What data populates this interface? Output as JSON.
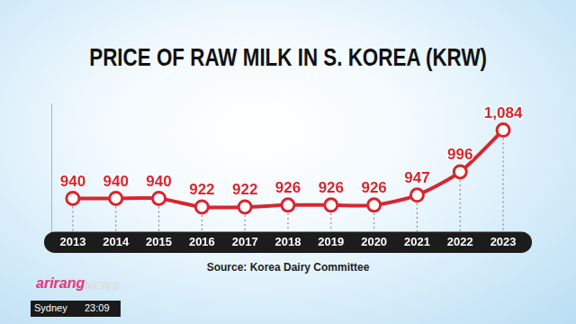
{
  "chart_data": {
    "type": "line",
    "title": "PRICE OF RAW MILK IN S. KOREA (KRW)",
    "categories": [
      "2013",
      "2014",
      "2015",
      "2016",
      "2017",
      "2018",
      "2019",
      "2020",
      "2021",
      "2022",
      "2023"
    ],
    "values": [
      940,
      940,
      940,
      922,
      922,
      926,
      926,
      926,
      947,
      996,
      1084
    ],
    "value_labels": [
      "940",
      "940",
      "940",
      "922",
      "922",
      "926",
      "926",
      "926",
      "947",
      "996",
      "1,084"
    ],
    "color": "#d7262e",
    "marker": "circle",
    "line_style": "solid",
    "ylim": [
      870,
      1140
    ],
    "grid": false,
    "data_labels": true,
    "tick_labels": "x",
    "source": "Source: Korea Dairy Committee",
    "annotations": [
      "arirang",
      "NEWS",
      "Sydney",
      "23:09"
    ]
  }
}
